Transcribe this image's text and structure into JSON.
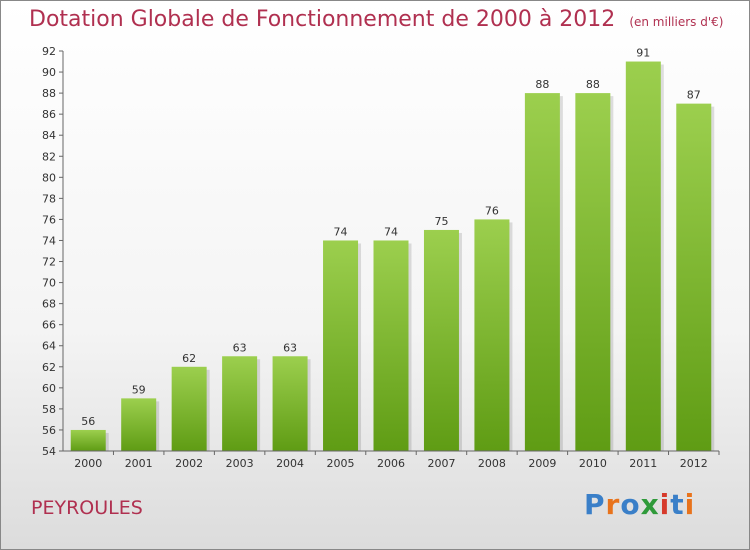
{
  "header": {
    "title": "Dotation Globale de Fonctionnement de 2000 à 2012",
    "unit": "(en milliers d'€)"
  },
  "footer": {
    "place": "PEYROULES",
    "logo": "Proxiti"
  },
  "colors": {
    "bar_top": "#9ccf4e",
    "bar_bottom": "#5f9c14",
    "title": "#b03050",
    "axis_text": "#333333",
    "logo_letters": [
      "#3a7fc8",
      "#e8731c",
      "#3a7fc8",
      "#2f9a3a",
      "#d63a2b",
      "#3a7fc8",
      "#e8731c"
    ]
  },
  "chart_data": {
    "type": "bar",
    "categories": [
      "2000",
      "2001",
      "2002",
      "2003",
      "2004",
      "2005",
      "2006",
      "2007",
      "2008",
      "2009",
      "2010",
      "2011",
      "2012"
    ],
    "values": [
      56,
      59,
      62,
      63,
      63,
      74,
      74,
      75,
      76,
      88,
      88,
      91,
      87
    ],
    "ylim": [
      54,
      92
    ],
    "ytick_step": 2,
    "grid": false,
    "data_labels": true,
    "title": "Dotation Globale de Fonctionnement de 2000 à 2012",
    "ylabel": "",
    "xlabel": ""
  }
}
